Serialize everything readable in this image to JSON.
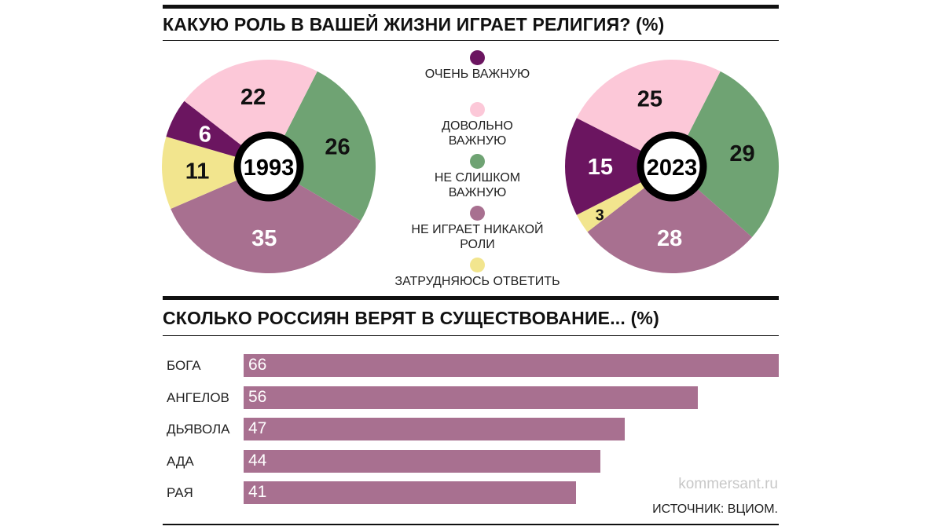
{
  "chart_data": [
    {
      "type": "pie",
      "title": "КАКУЮ РОЛЬ В ВАШЕЙ ЖИЗНИ ИГРАЕТ РЕЛИГИЯ? (%)",
      "center_label": "1993",
      "categories": [
        "НЕ СЛИШКОМ ВАЖНУЮ",
        "НЕ ИГРАЕТ НИКАКОЙ РОЛИ",
        "ЗАТРУДНЯЮСЬ ОТВЕТИТЬ",
        "ОЧЕНЬ ВАЖНУЮ",
        "ДОВОЛЬНО ВАЖНУЮ"
      ],
      "values": [
        26,
        35,
        11,
        6,
        22
      ],
      "colors": [
        "#6fa373",
        "#a87090",
        "#f2e58e",
        "#6b1560",
        "#fcc8d8"
      ],
      "label_colors": [
        "#111",
        "#fff",
        "#111",
        "#fff",
        "#111"
      ]
    },
    {
      "type": "pie",
      "center_label": "2023",
      "categories": [
        "НЕ СЛИШКОМ ВАЖНУЮ",
        "НЕ ИГРАЕТ НИКАКОЙ РОЛИ",
        "ЗАТРУДНЯЮСЬ ОТВЕТИТЬ",
        "ОЧЕНЬ ВАЖНУЮ",
        "ДОВОЛЬНО ВАЖНУЮ"
      ],
      "values": [
        29,
        28,
        3,
        15,
        25
      ],
      "colors": [
        "#6fa373",
        "#a87090",
        "#f2e58e",
        "#6b1560",
        "#fcc8d8"
      ],
      "label_colors": [
        "#111",
        "#fff",
        "#111",
        "#fff",
        "#111"
      ]
    },
    {
      "type": "bar",
      "title": "СКОЛЬКО РОССИЯН ВЕРЯТ В СУЩЕСТВОВАНИЕ... (%)",
      "categories": [
        "БОГА",
        "АНГЕЛОВ",
        "ДЬЯВОЛА",
        "АДА",
        "РАЯ"
      ],
      "values": [
        66,
        56,
        47,
        44,
        41
      ],
      "color": "#a87090",
      "xlim": [
        0,
        66
      ]
    }
  ],
  "legend": [
    {
      "label": "ОЧЕНЬ ВАЖНУЮ",
      "color": "#6b1560"
    },
    {
      "label": "ДОВОЛЬНО ВАЖНУЮ",
      "color": "#fcc8d8"
    },
    {
      "label": "НЕ СЛИШКОМ ВАЖНУЮ",
      "color": "#6fa373"
    },
    {
      "label": "НЕ ИГРАЕТ НИКАКОЙ РОЛИ",
      "color": "#a87090"
    },
    {
      "label": "ЗАТРУДНЯЮСЬ ОТВЕТИТЬ",
      "color": "#f2e58e"
    }
  ],
  "credit": "kommersant.ru",
  "source": "ИСТОЧНИК: ВЦИОМ."
}
